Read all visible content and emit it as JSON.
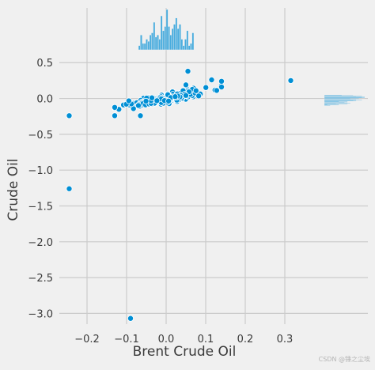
{
  "chart_data": {
    "type": "scatter",
    "style": "fivethirtyeight jointplot (scatter with marginal histograms)",
    "xlabel": "Brent Crude Oil",
    "ylabel": "Crude Oil",
    "xlim": [
      -0.27,
      0.35
    ],
    "ylim": [
      -3.15,
      0.58
    ],
    "xticks": [
      -0.2,
      -0.1,
      0.0,
      0.1,
      0.2,
      0.3
    ],
    "yticks": [
      0.5,
      0.0,
      -0.5,
      -1.0,
      -1.5,
      -2.0,
      -2.5,
      -3.0
    ],
    "xtick_labels": [
      "−0.2",
      "−0.1",
      "0.0",
      "0.1",
      "0.2",
      "0.3"
    ],
    "ytick_labels": [
      "0.5",
      "0.0",
      "−0.5",
      "−1.0",
      "−1.5",
      "−2.0",
      "−2.5",
      "−3.0"
    ],
    "grid": true,
    "colors": {
      "background": "#f0f0f0",
      "points": "#008fd5",
      "grid": "#cbcbcb",
      "text": "#3a3a3a"
    },
    "notable_points": [
      [
        -0.245,
        -0.24
      ],
      [
        -0.245,
        -1.26
      ],
      [
        -0.09,
        -3.07
      ],
      [
        -0.13,
        -0.24
      ],
      [
        -0.065,
        -0.24
      ],
      [
        0.055,
        0.38
      ],
      [
        0.315,
        0.25
      ],
      [
        0.05,
        0.19
      ],
      [
        0.115,
        0.26
      ],
      [
        0.14,
        0.24
      ],
      [
        0.14,
        0.16
      ]
    ],
    "cluster": {
      "center": [
        0.0,
        0.0
      ],
      "trend_slope": 1.0,
      "x_spread": 0.045,
      "residual_spread": 0.03,
      "approx_point_count": 260
    },
    "marginal_x": {
      "type": "histogram",
      "range": [
        -0.07,
        0.07
      ],
      "peak": 0.0
    },
    "marginal_y": {
      "type": "histogram",
      "range": [
        -0.1,
        0.05
      ],
      "peak": 0.0
    }
  },
  "watermark": "CSDN @锤之尘埃"
}
